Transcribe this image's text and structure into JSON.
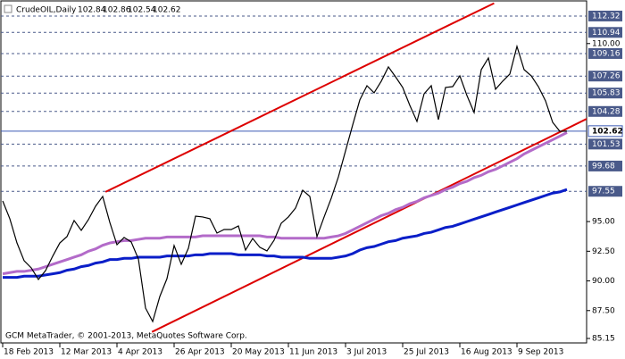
{
  "chart_data": {
    "type": "line",
    "symbol": "CrudeOIL,Daily",
    "ohlc_values": [
      102.84,
      102.86,
      102.54,
      102.62
    ],
    "footer": "GCM MetaTrader, © 2001-2013, MetaQuotes Software Corp.",
    "categories": [
      "18 Feb 2013",
      null,
      null,
      null,
      null,
      null,
      null,
      null,
      "12 Mar 2013",
      null,
      null,
      null,
      null,
      null,
      null,
      null,
      "4 Apr 2013",
      null,
      null,
      null,
      null,
      null,
      null,
      null,
      "26 Apr 2013",
      null,
      null,
      null,
      null,
      null,
      null,
      null,
      "20 May 2013",
      null,
      null,
      null,
      null,
      null,
      null,
      null,
      "11 Jun 2013",
      null,
      null,
      null,
      null,
      null,
      null,
      null,
      "3 Jul 2013",
      null,
      null,
      null,
      null,
      null,
      null,
      null,
      "25 Jul 2013",
      null,
      null,
      null,
      null,
      null,
      null,
      null,
      "16 Aug 2013",
      null,
      null,
      null,
      null,
      null,
      null,
      null,
      "9 Sep 2013",
      null,
      null,
      null,
      null,
      null,
      null,
      null
    ],
    "series": [
      {
        "name": "CrudeOIL",
        "color": "#000000",
        "values": [
          96.74,
          95.24,
          93.2,
          91.7,
          91.1,
          90.12,
          90.87,
          92.08,
          93.2,
          93.73,
          95.09,
          94.26,
          95.16,
          96.29,
          97.12,
          94.93,
          93.05,
          93.66,
          93.28,
          91.85,
          87.71,
          86.58,
          88.69,
          90.19,
          92.98,
          91.4,
          92.75,
          95.46,
          95.39,
          95.24,
          94.03,
          94.33,
          94.33,
          94.63,
          92.6,
          93.58,
          92.83,
          92.53,
          93.43,
          94.86,
          95.39,
          96.14,
          97.64,
          97.12,
          93.73,
          95.39,
          96.97,
          98.77,
          100.96,
          103.14,
          105.25,
          106.45,
          105.85,
          106.83,
          108.03,
          107.2,
          106.3,
          104.79,
          103.44,
          105.77,
          106.45,
          103.59,
          106.3,
          106.37,
          107.28,
          105.62,
          104.19,
          107.8,
          108.78,
          106.15,
          106.83,
          107.43,
          109.76,
          107.8,
          107.28,
          106.37,
          105.17,
          103.36,
          102.61,
          102.62
        ]
      },
      {
        "color": "#b36bc9",
        "values": [
          90.6,
          90.7,
          90.8,
          90.8,
          90.9,
          91.0,
          91.2,
          91.4,
          91.6,
          91.8,
          92.0,
          92.2,
          92.5,
          92.7,
          93.0,
          93.2,
          93.3,
          93.4,
          93.4,
          93.5,
          93.6,
          93.6,
          93.6,
          93.7,
          93.7,
          93.7,
          93.7,
          93.7,
          93.8,
          93.8,
          93.8,
          93.8,
          93.8,
          93.8,
          93.8,
          93.8,
          93.8,
          93.7,
          93.7,
          93.6,
          93.6,
          93.6,
          93.6,
          93.6,
          93.6,
          93.6,
          93.7,
          93.8,
          94.0,
          94.3,
          94.6,
          94.9,
          95.2,
          95.5,
          95.7,
          96.0,
          96.2,
          96.5,
          96.7,
          97.0,
          97.2,
          97.4,
          97.7,
          97.9,
          98.2,
          98.4,
          98.7,
          98.9,
          99.2,
          99.4,
          99.7,
          100.0,
          100.3,
          100.7,
          101.0,
          101.3,
          101.6,
          101.9,
          102.2,
          102.5
        ]
      },
      {
        "color": "#0a1ec8",
        "values": [
          90.3,
          90.3,
          90.3,
          90.4,
          90.4,
          90.4,
          90.5,
          90.6,
          90.7,
          90.9,
          91.0,
          91.2,
          91.3,
          91.5,
          91.6,
          91.8,
          91.8,
          91.9,
          91.9,
          92.0,
          92.0,
          92.0,
          92.0,
          92.1,
          92.1,
          92.1,
          92.1,
          92.2,
          92.2,
          92.3,
          92.3,
          92.3,
          92.3,
          92.2,
          92.2,
          92.2,
          92.2,
          92.1,
          92.1,
          92.0,
          92.0,
          92.0,
          92.0,
          91.9,
          91.9,
          91.9,
          91.9,
          92.0,
          92.1,
          92.3,
          92.6,
          92.8,
          92.9,
          93.1,
          93.3,
          93.4,
          93.6,
          93.7,
          93.8,
          94.0,
          94.1,
          94.3,
          94.5,
          94.6,
          94.8,
          95.0,
          95.2,
          95.4,
          95.6,
          95.8,
          96.0,
          96.2,
          96.4,
          96.6,
          96.8,
          97.0,
          97.2,
          97.4,
          97.5,
          97.7
        ]
      }
    ],
    "trend_lines": [
      {
        "color": "#dd0000",
        "x": [
          14.4,
          68.8
        ],
        "y": [
          97.5,
          113.4
        ]
      },
      {
        "color": "#dd0000",
        "x": [
          20.9,
          82.6
        ],
        "y": [
          85.7,
          103.9
        ]
      }
    ],
    "levels": [
      112.32,
      110.94,
      109.16,
      107.26,
      105.83,
      104.28,
      101.53,
      99.68,
      97.55
    ],
    "level_color": "#4a5a8a",
    "current_price": 102.62,
    "current_color": "#3c5ab4",
    "ylim": [
      84.85,
      113.52
    ],
    "yticks": [
      {
        "value": 110,
        "label": "110.00"
      },
      {
        "value": 95,
        "label": "95.00"
      },
      {
        "value": 92.5,
        "label": "92.50"
      },
      {
        "value": 90,
        "label": "90.00"
      },
      {
        "value": 87.5,
        "label": "87.50"
      },
      85.15
    ]
  }
}
